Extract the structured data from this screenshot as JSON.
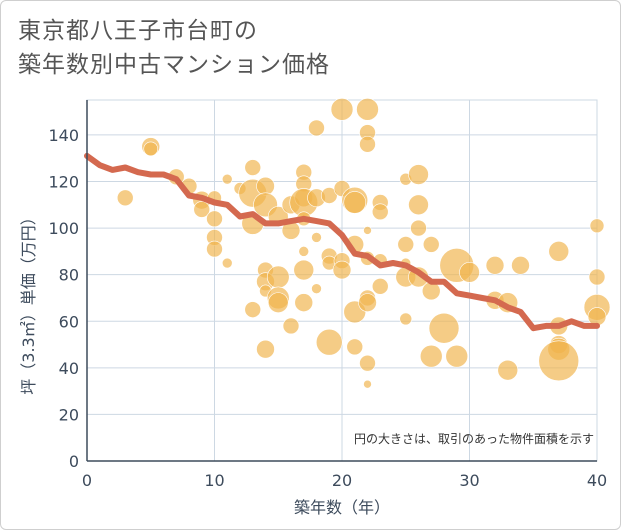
{
  "header": {
    "title_line1": "東京都八王子市台町の",
    "title_line2": "築年数別中古マンション価格"
  },
  "chart_data": {
    "type": "scatter",
    "title": "東京都八王子市台町の築年数別中古マンション価格",
    "xlabel": "築年数（年）",
    "ylabel": "坪（3.3㎡）単価（万円）",
    "xlim": [
      0,
      40
    ],
    "ylim": [
      0,
      155
    ],
    "x_ticks": [
      0,
      10,
      20,
      30,
      40
    ],
    "y_ticks": [
      0,
      20,
      40,
      60,
      80,
      100,
      120,
      140
    ],
    "grid": true,
    "note": "円の大きさは、取引のあった物件面積を示す",
    "colors": {
      "bubble": "#f0b44c",
      "trend": "#d4694f",
      "grid": "#cdd8e3"
    },
    "points": [
      {
        "x": 5,
        "y": 135,
        "s": 9
      },
      {
        "x": 5,
        "y": 134,
        "s": 7
      },
      {
        "x": 3,
        "y": 113,
        "s": 8
      },
      {
        "x": 7,
        "y": 122,
        "s": 8
      },
      {
        "x": 8,
        "y": 118,
        "s": 8
      },
      {
        "x": 9,
        "y": 112,
        "s": 9
      },
      {
        "x": 9,
        "y": 108,
        "s": 8
      },
      {
        "x": 10,
        "y": 113,
        "s": 7
      },
      {
        "x": 10,
        "y": 104,
        "s": 8
      },
      {
        "x": 10,
        "y": 96,
        "s": 8
      },
      {
        "x": 10,
        "y": 91,
        "s": 8
      },
      {
        "x": 11,
        "y": 85,
        "s": 5
      },
      {
        "x": 11,
        "y": 121,
        "s": 5
      },
      {
        "x": 12,
        "y": 117,
        "s": 6
      },
      {
        "x": 13,
        "y": 126,
        "s": 8
      },
      {
        "x": 13,
        "y": 115,
        "s": 14
      },
      {
        "x": 13,
        "y": 102,
        "s": 11
      },
      {
        "x": 14,
        "y": 118,
        "s": 9
      },
      {
        "x": 14,
        "y": 110,
        "s": 12
      },
      {
        "x": 14,
        "y": 82,
        "s": 8
      },
      {
        "x": 14,
        "y": 77,
        "s": 9
      },
      {
        "x": 14,
        "y": 73,
        "s": 6
      },
      {
        "x": 14,
        "y": 48,
        "s": 9
      },
      {
        "x": 13,
        "y": 65,
        "s": 8
      },
      {
        "x": 15,
        "y": 105,
        "s": 10
      },
      {
        "x": 15,
        "y": 79,
        "s": 11
      },
      {
        "x": 15,
        "y": 70,
        "s": 11
      },
      {
        "x": 15,
        "y": 68,
        "s": 10
      },
      {
        "x": 16,
        "y": 110,
        "s": 9
      },
      {
        "x": 16,
        "y": 99,
        "s": 9
      },
      {
        "x": 16,
        "y": 58,
        "s": 8
      },
      {
        "x": 17,
        "y": 124,
        "s": 8
      },
      {
        "x": 17,
        "y": 119,
        "s": 8
      },
      {
        "x": 17,
        "y": 113,
        "s": 9
      },
      {
        "x": 17,
        "y": 111,
        "s": 14
      },
      {
        "x": 17,
        "y": 104,
        "s": 7
      },
      {
        "x": 17,
        "y": 82,
        "s": 10
      },
      {
        "x": 17,
        "y": 68,
        "s": 9
      },
      {
        "x": 17,
        "y": 90,
        "s": 5
      },
      {
        "x": 18,
        "y": 143,
        "s": 8
      },
      {
        "x": 18,
        "y": 113,
        "s": 9
      },
      {
        "x": 18,
        "y": 96,
        "s": 5
      },
      {
        "x": 18,
        "y": 74,
        "s": 5
      },
      {
        "x": 19,
        "y": 114,
        "s": 8
      },
      {
        "x": 19,
        "y": 88,
        "s": 8
      },
      {
        "x": 19,
        "y": 85,
        "s": 7
      },
      {
        "x": 19,
        "y": 51,
        "s": 13
      },
      {
        "x": 20,
        "y": 151,
        "s": 11
      },
      {
        "x": 20,
        "y": 117,
        "s": 8
      },
      {
        "x": 20,
        "y": 86,
        "s": 8
      },
      {
        "x": 20,
        "y": 82,
        "s": 9
      },
      {
        "x": 21,
        "y": 112,
        "s": 13
      },
      {
        "x": 21,
        "y": 111,
        "s": 11
      },
      {
        "x": 21,
        "y": 93,
        "s": 9
      },
      {
        "x": 21,
        "y": 64,
        "s": 11
      },
      {
        "x": 21,
        "y": 49,
        "s": 8
      },
      {
        "x": 22,
        "y": 151,
        "s": 11
      },
      {
        "x": 22,
        "y": 141,
        "s": 8
      },
      {
        "x": 22,
        "y": 136,
        "s": 8
      },
      {
        "x": 22,
        "y": 99,
        "s": 4
      },
      {
        "x": 22,
        "y": 87,
        "s": 7
      },
      {
        "x": 22,
        "y": 70,
        "s": 8
      },
      {
        "x": 22,
        "y": 68,
        "s": 9
      },
      {
        "x": 22,
        "y": 42,
        "s": 8
      },
      {
        "x": 22,
        "y": 33,
        "s": 4
      },
      {
        "x": 23,
        "y": 111,
        "s": 8
      },
      {
        "x": 23,
        "y": 107,
        "s": 8
      },
      {
        "x": 23,
        "y": 86,
        "s": 7
      },
      {
        "x": 23,
        "y": 75,
        "s": 8
      },
      {
        "x": 25,
        "y": 121,
        "s": 6
      },
      {
        "x": 25,
        "y": 93,
        "s": 8
      },
      {
        "x": 25,
        "y": 85,
        "s": 5
      },
      {
        "x": 25,
        "y": 79,
        "s": 10
      },
      {
        "x": 25,
        "y": 61,
        "s": 6
      },
      {
        "x": 26,
        "y": 123,
        "s": 10
      },
      {
        "x": 26,
        "y": 110,
        "s": 10
      },
      {
        "x": 26,
        "y": 100,
        "s": 8
      },
      {
        "x": 26,
        "y": 79,
        "s": 10
      },
      {
        "x": 27,
        "y": 93,
        "s": 8
      },
      {
        "x": 27,
        "y": 73,
        "s": 9
      },
      {
        "x": 27,
        "y": 45,
        "s": 11
      },
      {
        "x": 28,
        "y": 57,
        "s": 15
      },
      {
        "x": 29,
        "y": 84,
        "s": 17
      },
      {
        "x": 29,
        "y": 45,
        "s": 11
      },
      {
        "x": 30,
        "y": 81,
        "s": 10
      },
      {
        "x": 32,
        "y": 84,
        "s": 9
      },
      {
        "x": 32,
        "y": 69,
        "s": 9
      },
      {
        "x": 33,
        "y": 68,
        "s": 10
      },
      {
        "x": 33,
        "y": 39,
        "s": 10
      },
      {
        "x": 34,
        "y": 84,
        "s": 9
      },
      {
        "x": 37,
        "y": 90,
        "s": 10
      },
      {
        "x": 37,
        "y": 58,
        "s": 9
      },
      {
        "x": 37,
        "y": 50,
        "s": 9
      },
      {
        "x": 37,
        "y": 48,
        "s": 11
      },
      {
        "x": 37,
        "y": 43,
        "s": 20
      },
      {
        "x": 40,
        "y": 101,
        "s": 7
      },
      {
        "x": 40,
        "y": 79,
        "s": 8
      },
      {
        "x": 40,
        "y": 66,
        "s": 13
      },
      {
        "x": 40,
        "y": 62,
        "s": 9
      }
    ],
    "trend": {
      "x": [
        0,
        1,
        2,
        3,
        4,
        5,
        6,
        7,
        8,
        9,
        10,
        11,
        12,
        13,
        14,
        15,
        16,
        17,
        18,
        19,
        20,
        21,
        22,
        23,
        24,
        25,
        26,
        27,
        28,
        29,
        30,
        31,
        32,
        33,
        34,
        35,
        36,
        37,
        38,
        39,
        40
      ],
      "y": [
        131,
        127,
        125,
        126,
        124,
        123,
        123,
        121,
        114,
        113,
        111,
        110,
        105,
        106,
        102,
        102,
        103,
        104,
        103,
        102,
        97,
        89,
        88,
        84,
        85,
        84,
        81,
        77,
        77,
        72,
        71,
        70,
        69,
        66,
        64,
        57,
        58,
        58,
        60,
        58,
        58
      ]
    }
  }
}
